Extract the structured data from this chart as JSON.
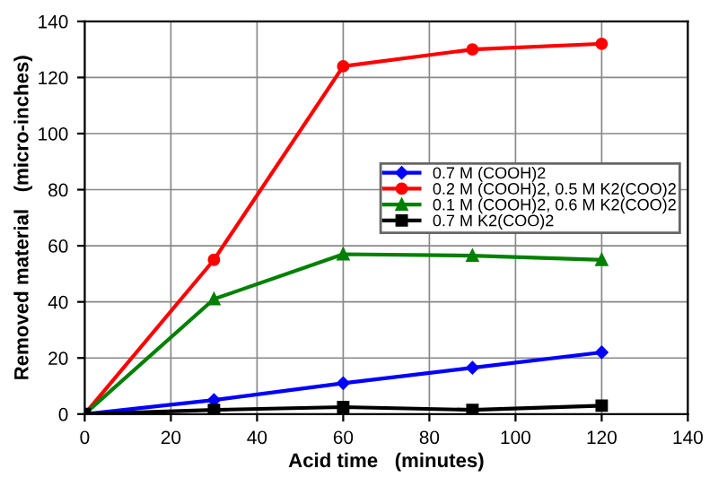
{
  "chart_data": {
    "type": "line",
    "xlabel": "Acid time   (minutes)",
    "ylabel": "Removed material   (micro-inches)",
    "x": [
      0,
      30,
      60,
      90,
      120
    ],
    "series": [
      {
        "name": "0.7 M (COOH)2",
        "color": "#0000ff",
        "marker": "diamond",
        "values": [
          0,
          5,
          11,
          16.5,
          22
        ]
      },
      {
        "name": "0.2 M (COOH)2, 0.5 M K2(COO)2",
        "color": "#ff0000",
        "marker": "circle",
        "values": [
          0,
          55,
          124,
          130,
          132
        ]
      },
      {
        "name": "0.1 M (COOH)2, 0.6 M K2(COO)2",
        "color": "#008000",
        "marker": "triangle",
        "values": [
          0,
          41,
          57,
          56.5,
          55
        ]
      },
      {
        "name": "0.7 M K2(COO)2",
        "color": "#000000",
        "marker": "square",
        "values": [
          0,
          1.5,
          2.5,
          1.5,
          3
        ]
      }
    ],
    "xlim": [
      0,
      140
    ],
    "xticks": [
      0,
      20,
      40,
      60,
      80,
      100,
      120,
      140
    ],
    "ylim": [
      0,
      140
    ],
    "yticks": [
      0,
      20,
      40,
      60,
      80,
      100,
      120,
      140
    ],
    "grid": true,
    "legend": "center right",
    "line_style": "solid"
  }
}
